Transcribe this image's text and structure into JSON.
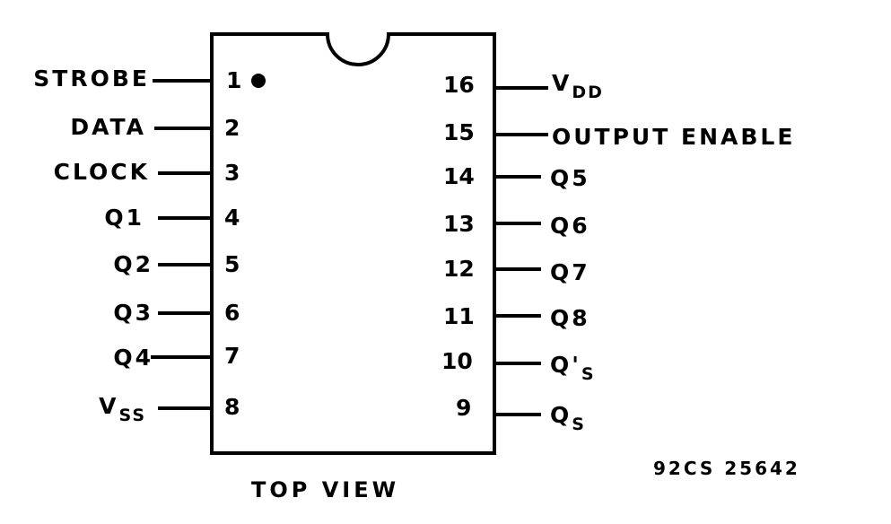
{
  "package": {
    "view_label": "TOP VIEW",
    "drawing_number": "92CS 25642"
  },
  "left_pins": [
    {
      "number": "1",
      "label": "STROBE"
    },
    {
      "number": "2",
      "label": "DATA"
    },
    {
      "number": "3",
      "label": "CLOCK"
    },
    {
      "number": "4",
      "label": "Q1"
    },
    {
      "number": "5",
      "label": "Q2"
    },
    {
      "number": "6",
      "label": "Q3"
    },
    {
      "number": "7",
      "label": "Q4"
    },
    {
      "number": "8",
      "label": "V",
      "label_sub": "SS"
    }
  ],
  "right_pins": [
    {
      "number": "16",
      "label": "V",
      "label_sub": "DD"
    },
    {
      "number": "15",
      "label": "OUTPUT ENABLE"
    },
    {
      "number": "14",
      "label": "Q5"
    },
    {
      "number": "13",
      "label": "Q6"
    },
    {
      "number": "12",
      "label": "Q7"
    },
    {
      "number": "11",
      "label": "Q8"
    },
    {
      "number": "10",
      "label": "Q'",
      "label_sub": "S"
    },
    {
      "number": "9",
      "label": "Q",
      "label_sub": "S"
    }
  ]
}
